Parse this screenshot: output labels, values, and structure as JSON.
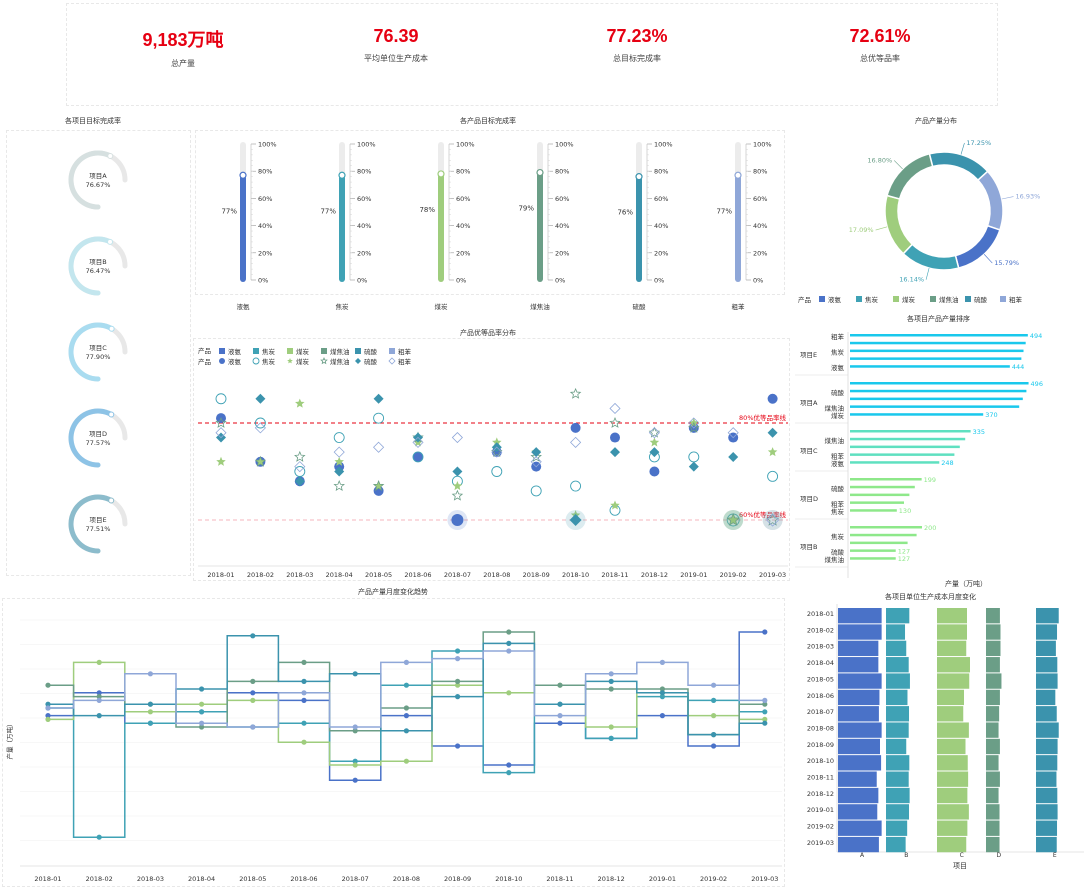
{
  "kpis": [
    {
      "value": "9,183万吨",
      "label": "总产量"
    },
    {
      "value": "76.39",
      "label": "平均单位生产成本"
    },
    {
      "value": "77.23%",
      "label": "总目标完成率"
    },
    {
      "value": "72.61%",
      "label": "总优等品率"
    }
  ],
  "titles": {
    "gauges": "各项目目标完成率",
    "thermo": "各产品目标完成率",
    "donut": "产品产量分布",
    "scatter": "产品优等品率分布",
    "ranking": "各项目产品产量排序",
    "steps": "产品产量月度变化趋势",
    "cost": "各项目单位生产成本月度变化"
  },
  "colors": {
    "p1": "#4a72c8",
    "p2": "#3fa2b5",
    "p3": "#9fcd7d",
    "p4": "#6b9e87",
    "p5": "#3b93ad",
    "p6": "#8fa7d8",
    "red": "#e60012",
    "rank_top": "#19c8ec",
    "rank_bottom": "#8ee88a"
  },
  "chart_data": [
    {
      "type": "gauge",
      "name": "gauges",
      "items": [
        {
          "label": "项目A",
          "value": 76.67,
          "text": "76.67%",
          "color": "#d6e0e0"
        },
        {
          "label": "项目B",
          "value": 76.47,
          "text": "76.47%",
          "color": "#c3e6ee"
        },
        {
          "label": "项目C",
          "value": 77.9,
          "text": "77.90%",
          "color": "#a9dcf0"
        },
        {
          "label": "项目D",
          "value": 77.57,
          "text": "77.57%",
          "color": "#8dc3e6"
        },
        {
          "label": "项目E",
          "value": 77.51,
          "text": "77.51%",
          "color": "#8cbccc"
        }
      ]
    },
    {
      "type": "bar",
      "name": "thermo",
      "categories": [
        "液氨",
        "焦炭",
        "煤炭",
        "煤焦油",
        "硫酸",
        "粗苯"
      ],
      "values": [
        77,
        77,
        78,
        79,
        76,
        77
      ],
      "labels": [
        "77%",
        "77%",
        "78%",
        "79%",
        "76%",
        "77%"
      ],
      "colors": [
        "#4a72c8",
        "#3fa2b5",
        "#9fcd7d",
        "#6b9e87",
        "#3b93ad",
        "#8fa7d8"
      ],
      "ticks": [
        "100%",
        "80%",
        "60%",
        "40%",
        "20%",
        "0%"
      ],
      "ylim": [
        0,
        100
      ]
    },
    {
      "type": "pie",
      "name": "donut",
      "slices": [
        {
          "label": "液氨",
          "value": 15.79,
          "text": "15.79%",
          "color": "#4a72c8"
        },
        {
          "label": "焦炭",
          "value": 16.14,
          "text": "16.14%",
          "color": "#3fa2b5"
        },
        {
          "label": "煤炭",
          "value": 17.09,
          "text": "17.09%",
          "color": "#9fcd7d"
        },
        {
          "label": "煤焦油",
          "value": 16.8,
          "text": "16.80%",
          "color": "#6b9e87"
        },
        {
          "label": "硫酸",
          "value": 17.25,
          "text": "17.25%",
          "color": "#3b93ad"
        },
        {
          "label": "粗苯",
          "value": 16.93,
          "text": "16.93%",
          "color": "#8fa7d8"
        }
      ],
      "legend_title": "产品"
    },
    {
      "type": "scatter",
      "name": "scatter",
      "x": [
        "2018-01",
        "2018-02",
        "2018-03",
        "2018-04",
        "2018-05",
        "2018-06",
        "2018-07",
        "2018-08",
        "2018-09",
        "2018-10",
        "2018-11",
        "2018-12",
        "2019-01",
        "2019-02",
        "2019-03"
      ],
      "legend_title": "产品",
      "legend_row1": [
        "液氨",
        "焦炭",
        "煤炭",
        "煤焦油",
        "硫酸",
        "粗苯"
      ],
      "legend_row2": [
        "液氨",
        "焦炭",
        "煤炭",
        "煤焦油",
        "硫酸",
        "粗苯"
      ],
      "ref_lines": [
        {
          "label": "80%优等品率线",
          "y": 80
        },
        {
          "label": "60%优等品率线",
          "y": 60
        }
      ],
      "series": [
        {
          "color": "#4a72c8",
          "shape": "circle",
          "values": [
            81,
            72,
            68,
            71,
            66,
            73,
            60,
            74,
            71,
            79,
            77,
            70,
            79,
            77,
            85
          ]
        },
        {
          "color": "#3fa2b5",
          "shape": "ring",
          "values": [
            85,
            80,
            70,
            77,
            81,
            73,
            68,
            70,
            66,
            67,
            62,
            73,
            73,
            60,
            69
          ]
        },
        {
          "color": "#9fcd7d",
          "shape": "star",
          "values": [
            72,
            72,
            84,
            72,
            67,
            76,
            67,
            76,
            74,
            61,
            63,
            76,
            80,
            60,
            74
          ]
        },
        {
          "color": "#6b9e87",
          "shape": "star-o",
          "values": [
            80,
            72,
            73,
            67,
            67,
            77,
            65,
            74,
            73,
            86,
            80,
            78,
            79,
            60,
            60
          ]
        },
        {
          "color": "#3b93ad",
          "shape": "diamond",
          "values": [
            77,
            85,
            68,
            70,
            85,
            77,
            70,
            75,
            74,
            60,
            74,
            74,
            71,
            73,
            78
          ]
        },
        {
          "color": "#8fa7d8",
          "shape": "diamond-o",
          "values": [
            78,
            79,
            71,
            74,
            75,
            76,
            77,
            74,
            72,
            76,
            83,
            78,
            80,
            78,
            60
          ]
        }
      ]
    },
    {
      "type": "bar",
      "name": "ranking",
      "orientation": "horizontal",
      "groups": [
        {
          "label": "项目E",
          "items": [
            {
              "cat": "粗苯",
              "v": 494
            },
            {
              "cat": "",
              "v": 488
            },
            {
              "cat": "焦炭",
              "v": 482
            },
            {
              "cat": "",
              "v": 476
            },
            {
              "cat": "液氨",
              "v": 444
            }
          ]
        },
        {
          "label": "项目A",
          "items": [
            {
              "cat": "",
              "v": 496
            },
            {
              "cat": "硫酸",
              "v": 490
            },
            {
              "cat": "",
              "v": 480
            },
            {
              "cat": "煤焦油",
              "v": 470
            },
            {
              "cat": "煤炭",
              "v": 370
            }
          ]
        },
        {
          "label": "项目C",
          "items": [
            {
              "cat": "",
              "v": 335
            },
            {
              "cat": "煤焦油",
              "v": 320
            },
            {
              "cat": "",
              "v": 305
            },
            {
              "cat": "粗苯",
              "v": 290
            },
            {
              "cat": "液氨",
              "v": 248
            }
          ]
        },
        {
          "label": "项目D",
          "items": [
            {
              "cat": "",
              "v": 199
            },
            {
              "cat": "硫酸",
              "v": 180
            },
            {
              "cat": "",
              "v": 165
            },
            {
              "cat": "粗苯",
              "v": 150
            },
            {
              "cat": "焦炭",
              "v": 130
            }
          ]
        },
        {
          "label": "项目B",
          "items": [
            {
              "cat": "",
              "v": 200
            },
            {
              "cat": "焦炭",
              "v": 185
            },
            {
              "cat": "",
              "v": 160
            },
            {
              "cat": "硫酸",
              "v": 127
            },
            {
              "cat": "煤焦油",
              "v": 127
            }
          ]
        }
      ],
      "value_labels": {
        "0-0": "494",
        "0-4": "444",
        "1-0": "496",
        "1-4": "370",
        "2-0": "335",
        "2-4": "248",
        "3-0": "199",
        "3-4": "130",
        "4-0": "200",
        "4-3": "127",
        "4-4": "127"
      },
      "xlabel": "产量（万吨）",
      "xmax": 500
    },
    {
      "type": "line",
      "name": "steps",
      "x": [
        "2018-01",
        "2018-02",
        "2018-03",
        "2018-04",
        "2018-05",
        "2018-06",
        "2018-07",
        "2018-08",
        "2018-09",
        "2018-10",
        "2018-11",
        "2018-12",
        "2019-01",
        "2019-02",
        "2019-03"
      ],
      "ylabel": "产量（万吨）",
      "series": [
        {
          "color": "#4a72c8",
          "values": [
            290,
            320,
            280,
            295,
            320,
            310,
            205,
            290,
            250,
            225,
            280,
            260,
            290,
            250,
            400
          ]
        },
        {
          "color": "#3fa2b5",
          "values": [
            300,
            130,
            280,
            295,
            275,
            280,
            230,
            330,
            375,
            215,
            305,
            260,
            315,
            310,
            295
          ]
        },
        {
          "color": "#9fcd7d",
          "values": [
            285,
            360,
            295,
            305,
            310,
            255,
            225,
            230,
            330,
            320,
            330,
            275,
            320,
            290,
            285
          ]
        },
        {
          "color": "#6b9e87",
          "values": [
            330,
            315,
            305,
            275,
            335,
            360,
            270,
            300,
            335,
            400,
            330,
            325,
            325,
            265,
            305
          ]
        },
        {
          "color": "#3b93ad",
          "values": [
            305,
            290,
            305,
            325,
            395,
            335,
            345,
            270,
            315,
            385,
            305,
            335,
            320,
            265,
            280
          ]
        },
        {
          "color": "#8fa7d8",
          "values": [
            300,
            310,
            345,
            280,
            275,
            320,
            275,
            360,
            365,
            375,
            290,
            345,
            360,
            330,
            310
          ]
        }
      ]
    },
    {
      "type": "bar",
      "name": "cost",
      "orientation": "horizontal",
      "categories": [
        "2018-01",
        "2018-02",
        "2018-03",
        "2018-04",
        "2018-05",
        "2018-06",
        "2018-07",
        "2018-08",
        "2018-09",
        "2018-10",
        "2018-11",
        "2018-12",
        "2019-01",
        "2019-02",
        "2019-03"
      ],
      "xcats": [
        "A",
        "B",
        "C",
        "D",
        "E"
      ],
      "xlabel": "项目",
      "colors": [
        "#4a72c8",
        "#3fa2b5",
        "#9fcd7d",
        "#6b9e87",
        "#3b93ad"
      ],
      "series": [
        {
          "name": "A",
          "values": [
            80,
            80,
            74,
            74,
            80,
            76,
            75,
            80,
            77,
            79,
            71,
            74,
            72,
            80,
            75
          ]
        },
        {
          "name": "B",
          "values": [
            76,
            62,
            66,
            74,
            78,
            70,
            75,
            74,
            66,
            76,
            74,
            77,
            75,
            69,
            64
          ]
        },
        {
          "name": "C",
          "values": [
            80,
            80,
            78,
            88,
            86,
            72,
            70,
            85,
            76,
            82,
            83,
            81,
            85,
            81,
            78
          ]
        },
        {
          "name": "D",
          "values": [
            72,
            75,
            75,
            72,
            80,
            72,
            68,
            65,
            72,
            65,
            72,
            65,
            70,
            70,
            70
          ]
        },
        {
          "name": "E",
          "values": [
            80,
            74,
            70,
            75,
            76,
            68,
            73,
            80,
            76,
            75,
            72,
            75,
            76,
            74,
            73
          ]
        }
      ]
    }
  ]
}
